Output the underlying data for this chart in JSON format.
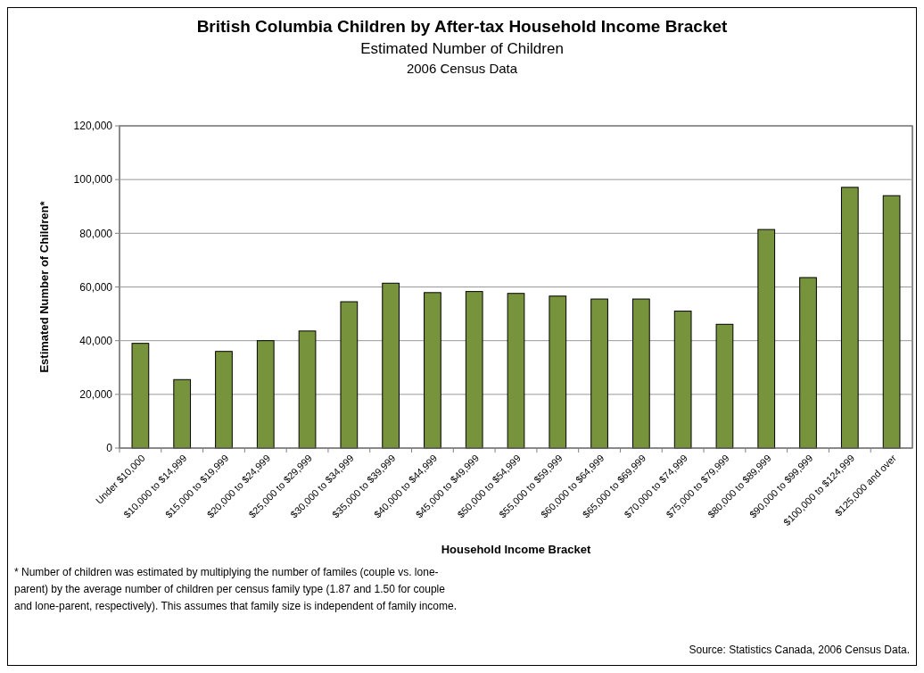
{
  "chart_data": {
    "type": "bar",
    "title": "British Columbia Children by After-tax Household Income Bracket",
    "subtitle": "Estimated Number of Children\n2006 Census Data",
    "xlabel": "Household Income Bracket",
    "ylabel": "Estimated Number of Children*",
    "categories": [
      "Under $10,000",
      "$10,000 to $14,999",
      "$15,000 to $19,999",
      "$20,000 to $24,999",
      "$25,000 to $29,999",
      "$30,000 to $34,999",
      "$35,000 to $39,999",
      "$40,000 to $44,999",
      "$45,000 to $49,999",
      "$50,000 to $54,999",
      "$55,000 to $59,999",
      "$60,000 to $64,999",
      "$65,000 to $69,999",
      "$70,000 to $74,999",
      "$75,000 to $79,999",
      "$80,000 to $89,999",
      "$90,000 to $99,999",
      "$100,000 to $124,999",
      "$125,000 and over"
    ],
    "values": [
      39000,
      25500,
      36000,
      40000,
      43600,
      54500,
      61400,
      57900,
      58300,
      57600,
      56600,
      55500,
      55500,
      51000,
      46100,
      81400,
      63500,
      97100,
      94000
    ],
    "color": "#77933c",
    "ylim": [
      0,
      120000
    ],
    "yticks": [
      {
        "value": 0,
        "label": "0"
      },
      {
        "value": 20000,
        "label": "20,000"
      },
      {
        "value": 40000,
        "label": "40,000"
      },
      {
        "value": 60000,
        "label": "60,000"
      },
      {
        "value": 80000,
        "label": "80,000"
      },
      {
        "value": 100000,
        "label": "100,000"
      },
      {
        "value": 120000,
        "label": "120,000"
      }
    ],
    "grid": "y",
    "annotations": [
      "* Number of children was estimated by multiplying the number of familes (couple vs. lone-\nparent) by the average number of children per census family type (1.87 and 1.50 for couple\nand lone-parent, respectively). This assumes that family size is independent of family income.",
      "Source: Statistics Canada, 2006 Census Data."
    ]
  }
}
